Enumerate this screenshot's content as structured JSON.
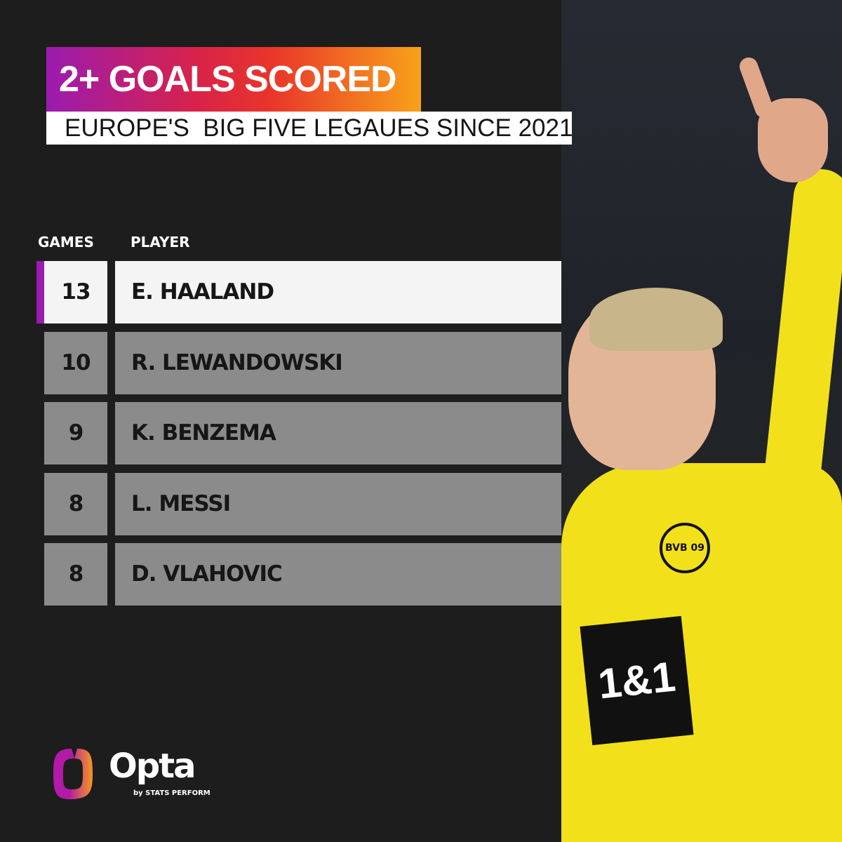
{
  "title": "2+ GOALS SCORED",
  "subtitle": "EUROPE'S  BIG FIVE LEGAUES SINCE 2021",
  "colors": {
    "accent": "#9b1bb0",
    "gradient_start": "#9b1bb0",
    "gradient_mid": "#e9352a",
    "gradient_end": "#f9a21a",
    "row_highlight": "#f4f4f4",
    "row": "#8b8b8b"
  },
  "chart_data": {
    "type": "table",
    "title": "2+ GOALS SCORED",
    "subtitle": "EUROPE'S  BIG FIVE LEGAUES SINCE 2021",
    "columns": [
      "GAMES",
      "PLAYER"
    ],
    "rows": [
      {
        "games": "13",
        "player": "E. HAALAND"
      },
      {
        "games": "10",
        "player": "R. LEWANDOWSKI"
      },
      {
        "games": "9",
        "player": "K. BENZEMA"
      },
      {
        "games": "8",
        "player": "L. MESSI"
      },
      {
        "games": "8",
        "player": "D. VLAHOVIC"
      }
    ],
    "highlighted_row": 0
  },
  "branding": {
    "logo": "Opta",
    "tagline": "by STATS PERFORM"
  },
  "photo": {
    "badge": "BVB 09",
    "sponsor": "1&1"
  }
}
